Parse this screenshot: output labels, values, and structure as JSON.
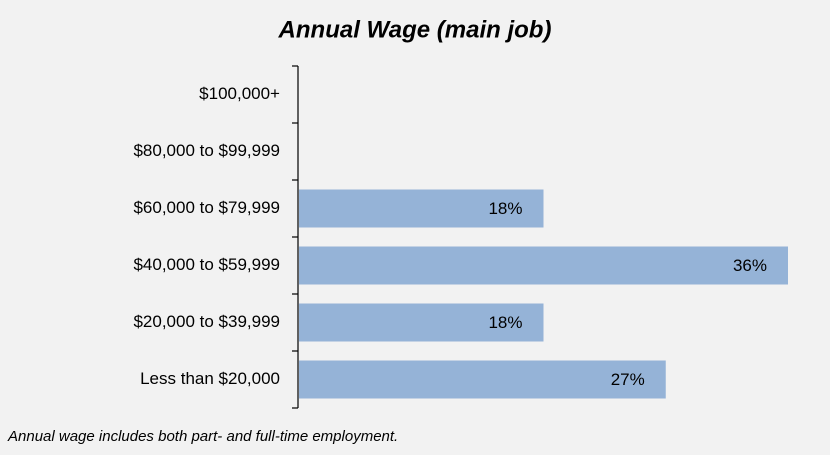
{
  "chart_data": {
    "type": "bar",
    "orientation": "horizontal",
    "title": "Annual Wage (main job)",
    "categories": [
      "$100,000+",
      "$80,000 to $99,999",
      "$60,000 to $79,999",
      "$40,000 to $59,999",
      "$20,000 to $39,999",
      "Less than $20,000"
    ],
    "values": [
      null,
      null,
      18,
      36,
      18,
      27
    ],
    "value_labels": [
      null,
      null,
      "18%",
      "36%",
      "18%",
      "27%"
    ],
    "color": "#95b3d7",
    "note": "Annual wage includes both part- and full-time employment."
  }
}
